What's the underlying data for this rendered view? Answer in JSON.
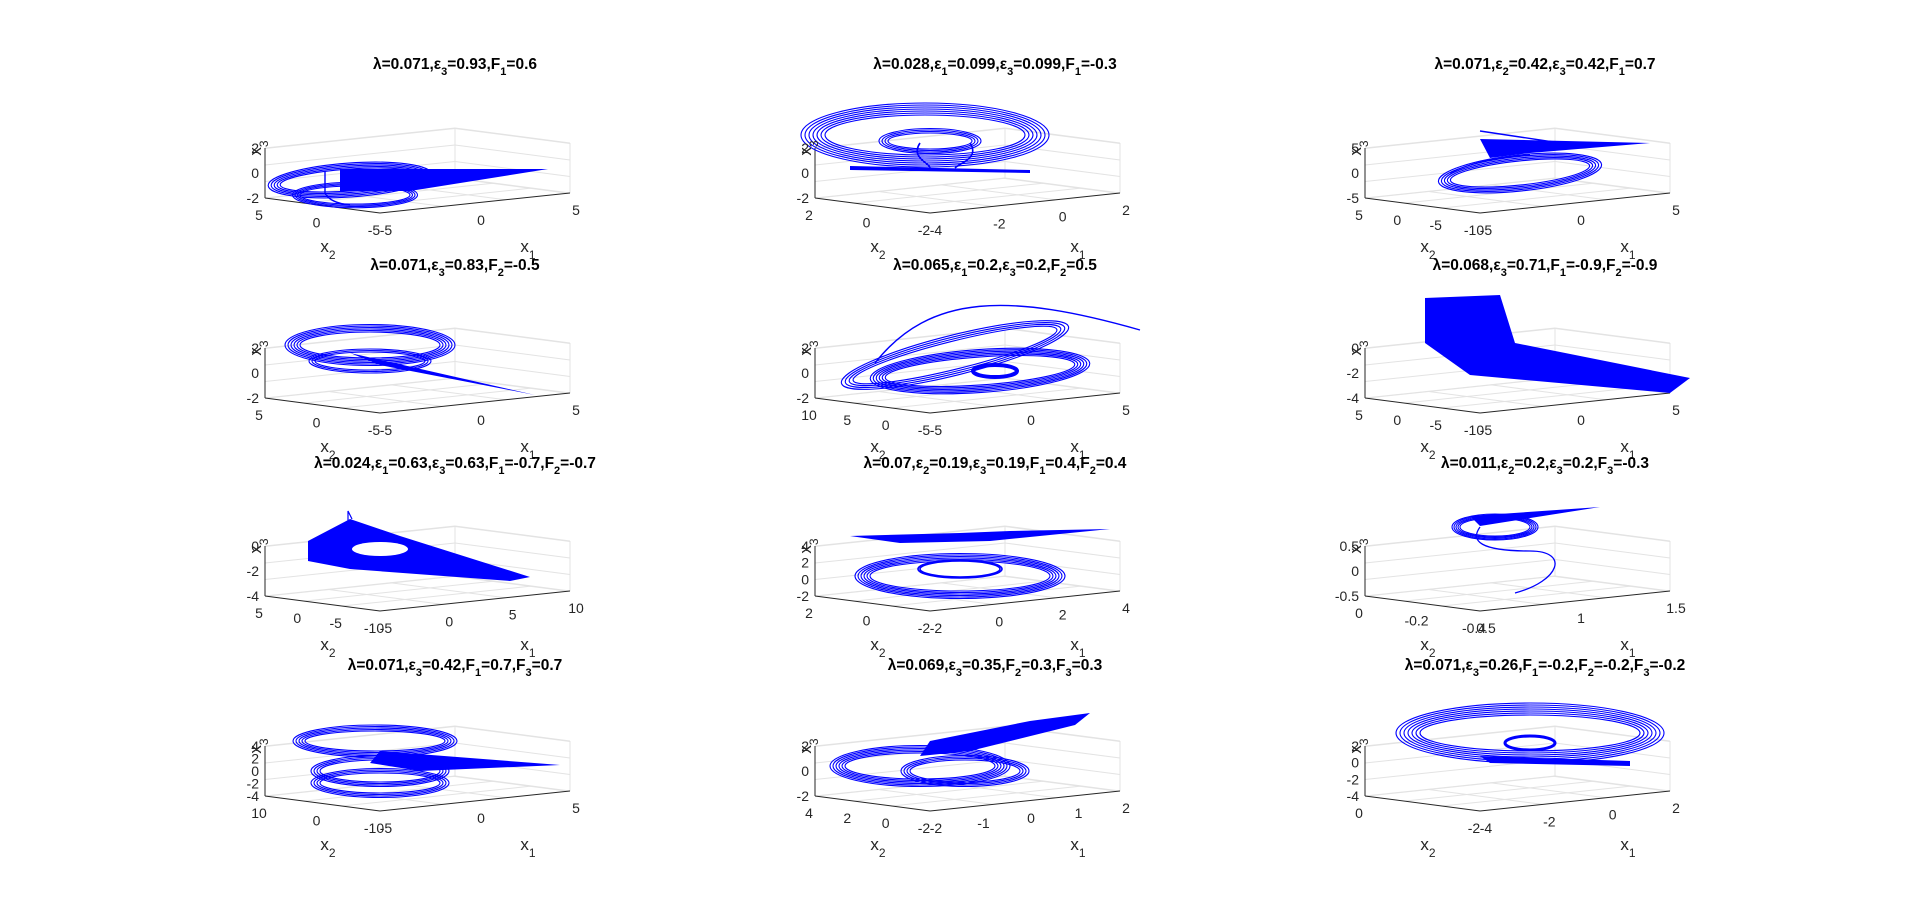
{
  "figure": {
    "background": "#ffffff",
    "trace_color": "#0000ff",
    "grid_color": "#e3e3e3",
    "axis_color": "#262626"
  },
  "chart_data": [
    {
      "type": "scatter",
      "shape": "A",
      "title": "λ=0.071,ε3=0.93,F1=0.6",
      "title_parts": [
        [
          "λ",
          "=0.071,"
        ],
        [
          "ε",
          "3",
          "=0.93,"
        ],
        [
          "F",
          "1",
          "=0.6"
        ]
      ],
      "xlabel": "x1",
      "ylabel": "x2",
      "zlabel": "x3",
      "xticks": [
        "-5",
        "0",
        "5"
      ],
      "yticks": [
        "5",
        "0",
        "-5"
      ],
      "zticks": [
        "2",
        "0",
        "-2"
      ]
    },
    {
      "type": "scatter",
      "shape": "B",
      "title": "λ=0.028,ε1=0.099,ε3=0.099,F1=-0.3",
      "title_parts": [
        [
          "λ",
          "=0.028,"
        ],
        [
          "ε",
          "1",
          "=0.099,"
        ],
        [
          "ε",
          "3",
          "=0.099,"
        ],
        [
          "F",
          "1",
          "=-0.3"
        ]
      ],
      "xlabel": "x1",
      "ylabel": "x2",
      "zlabel": "x3",
      "xticks": [
        "-4",
        "-2",
        "0",
        "2"
      ],
      "yticks": [
        "2",
        "0",
        "-2"
      ],
      "zticks": [
        "2",
        "0",
        "-2"
      ]
    },
    {
      "type": "scatter",
      "shape": "C",
      "title": "λ=0.071,ε2=0.42,ε3=0.42,F1=0.7",
      "title_parts": [
        [
          "λ",
          "=0.071,"
        ],
        [
          "ε",
          "2",
          "=0.42,"
        ],
        [
          "ε",
          "3",
          "=0.42,"
        ],
        [
          "F",
          "1",
          "=0.7"
        ]
      ],
      "xlabel": "x1",
      "ylabel": "x2",
      "zlabel": "x3",
      "xticks": [
        "-5",
        "0",
        "5"
      ],
      "yticks": [
        "5",
        "0",
        "-5",
        "-10"
      ],
      "zticks": [
        "5",
        "0",
        "-5"
      ]
    },
    {
      "type": "scatter",
      "shape": "D",
      "title": "λ=0.071,ε3=0.83,F2=-0.5",
      "title_parts": [
        [
          "λ",
          "=0.071,"
        ],
        [
          "ε",
          "3",
          "=0.83,"
        ],
        [
          "F",
          "2",
          "=-0.5"
        ]
      ],
      "xlabel": "x1",
      "ylabel": "x2",
      "zlabel": "x3",
      "xticks": [
        "-5",
        "0",
        "5"
      ],
      "yticks": [
        "5",
        "0",
        "-5"
      ],
      "zticks": [
        "2",
        "0",
        "-2"
      ]
    },
    {
      "type": "scatter",
      "shape": "E",
      "title": "λ=0.065,ε1=0.2,ε3=0.2,F2=0.5",
      "title_parts": [
        [
          "λ",
          "=0.065,"
        ],
        [
          "ε",
          "1",
          "=0.2,"
        ],
        [
          "ε",
          "3",
          "=0.2,"
        ],
        [
          "F",
          "2",
          "=0.5"
        ]
      ],
      "xlabel": "x1",
      "ylabel": "x2",
      "zlabel": "x3",
      "xticks": [
        "-5",
        "0",
        "5"
      ],
      "yticks": [
        "10",
        "5",
        "0",
        "-5"
      ],
      "zticks": [
        "2",
        "0",
        "-2"
      ]
    },
    {
      "type": "scatter",
      "shape": "F",
      "title": "λ=0.068,ε3=0.71,F1=-0.9,F2=-0.9",
      "title_parts": [
        [
          "λ",
          "=0.068,"
        ],
        [
          "ε",
          "3",
          "=0.71,"
        ],
        [
          "F",
          "1",
          "=-0.9,"
        ],
        [
          "F",
          "2",
          "=-0.9"
        ]
      ],
      "xlabel": "x1",
      "ylabel": "x2",
      "zlabel": "x3",
      "xticks": [
        "-5",
        "0",
        "5"
      ],
      "yticks": [
        "5",
        "0",
        "-5",
        "-10"
      ],
      "zticks": [
        "0",
        "-2",
        "-4"
      ]
    },
    {
      "type": "scatter",
      "shape": "G",
      "title": "λ=0.024,ε1=0.63,ε3=0.63,F1=-0.7,F2=-0.7",
      "title_parts": [
        [
          "λ",
          "=0.024,"
        ],
        [
          "ε",
          "1",
          "=0.63,"
        ],
        [
          "ε",
          "3",
          "=0.63,"
        ],
        [
          "F",
          "1",
          "=-0.7,"
        ],
        [
          "F",
          "2",
          "=-0.7"
        ]
      ],
      "xlabel": "x1",
      "ylabel": "x2",
      "zlabel": "x3",
      "xticks": [
        "-5",
        "0",
        "5",
        "10"
      ],
      "yticks": [
        "5",
        "0",
        "-5",
        "-10"
      ],
      "zticks": [
        "0",
        "-2",
        "-4"
      ]
    },
    {
      "type": "scatter",
      "shape": "H",
      "title": "λ=0.07,ε2=0.19,ε3=0.19,F1=0.4,F2=0.4",
      "title_parts": [
        [
          "λ",
          "=0.07,"
        ],
        [
          "ε",
          "2",
          "=0.19,"
        ],
        [
          "ε",
          "3",
          "=0.19,"
        ],
        [
          "F",
          "1",
          "=0.4,"
        ],
        [
          "F",
          "2",
          "=0.4"
        ]
      ],
      "xlabel": "x1",
      "ylabel": "x2",
      "zlabel": "x3",
      "xticks": [
        "-2",
        "0",
        "2",
        "4"
      ],
      "yticks": [
        "2",
        "0",
        "-2"
      ],
      "zticks": [
        "4",
        "2",
        "0",
        "-2"
      ]
    },
    {
      "type": "scatter",
      "shape": "I",
      "title": "λ=0.011,ε2=0.2,ε3=0.2,F3=-0.3",
      "title_parts": [
        [
          "λ",
          "=0.011,"
        ],
        [
          "ε",
          "2",
          "=0.2,"
        ],
        [
          "ε",
          "3",
          "=0.2,"
        ],
        [
          "F",
          "3",
          "=-0.3"
        ]
      ],
      "xlabel": "x1",
      "ylabel": "x2",
      "zlabel": "x3",
      "xticks": [
        "0.5",
        "1",
        "1.5"
      ],
      "yticks": [
        "0",
        "-0.2",
        "-0.4"
      ],
      "zticks": [
        "0.5",
        "0",
        "-0.5"
      ]
    },
    {
      "type": "scatter",
      "shape": "J",
      "title": "λ=0.071,ε3=0.42,F1=0.7,F3=0.7",
      "title_parts": [
        [
          "λ",
          "=0.071,"
        ],
        [
          "ε",
          "3",
          "=0.42,"
        ],
        [
          "F",
          "1",
          "=0.7,"
        ],
        [
          "F",
          "3",
          "=0.7"
        ]
      ],
      "xlabel": "x1",
      "ylabel": "x2",
      "zlabel": "x3",
      "xticks": [
        "-5",
        "0",
        "5"
      ],
      "yticks": [
        "10",
        "0",
        "-10"
      ],
      "zticks": [
        "4",
        "2",
        "0",
        "-2",
        "-4"
      ]
    },
    {
      "type": "scatter",
      "shape": "K",
      "title": "λ=0.069,ε3=0.35,F2=0.3,F3=0.3",
      "title_parts": [
        [
          "λ",
          "=0.069,"
        ],
        [
          "ε",
          "3",
          "=0.35,"
        ],
        [
          "F",
          "2",
          "=0.3,"
        ],
        [
          "F",
          "3",
          "=0.3"
        ]
      ],
      "xlabel": "x1",
      "ylabel": "x2",
      "zlabel": "x3",
      "xticks": [
        "-2",
        "-1",
        "0",
        "1",
        "2"
      ],
      "yticks": [
        "4",
        "2",
        "0",
        "-2"
      ],
      "zticks": [
        "2",
        "0",
        "-2"
      ]
    },
    {
      "type": "scatter",
      "shape": "L",
      "title": "λ=0.071,ε3=0.26,F1=-0.2,F2=-0.2,F3=-0.2",
      "title_parts": [
        [
          "λ",
          "=0.071,"
        ],
        [
          "ε",
          "3",
          "=0.26,"
        ],
        [
          "F",
          "1",
          "=-0.2,"
        ],
        [
          "F",
          "2",
          "=-0.2,"
        ],
        [
          "F",
          "3",
          "=-0.2"
        ]
      ],
      "xlabel": "x1",
      "ylabel": "x2",
      "zlabel": "x3",
      "xticks": [
        "-4",
        "-2",
        "0",
        "2"
      ],
      "yticks": [
        "0",
        "-2"
      ],
      "zticks": [
        "2",
        "0",
        "-2",
        "-4"
      ]
    }
  ]
}
